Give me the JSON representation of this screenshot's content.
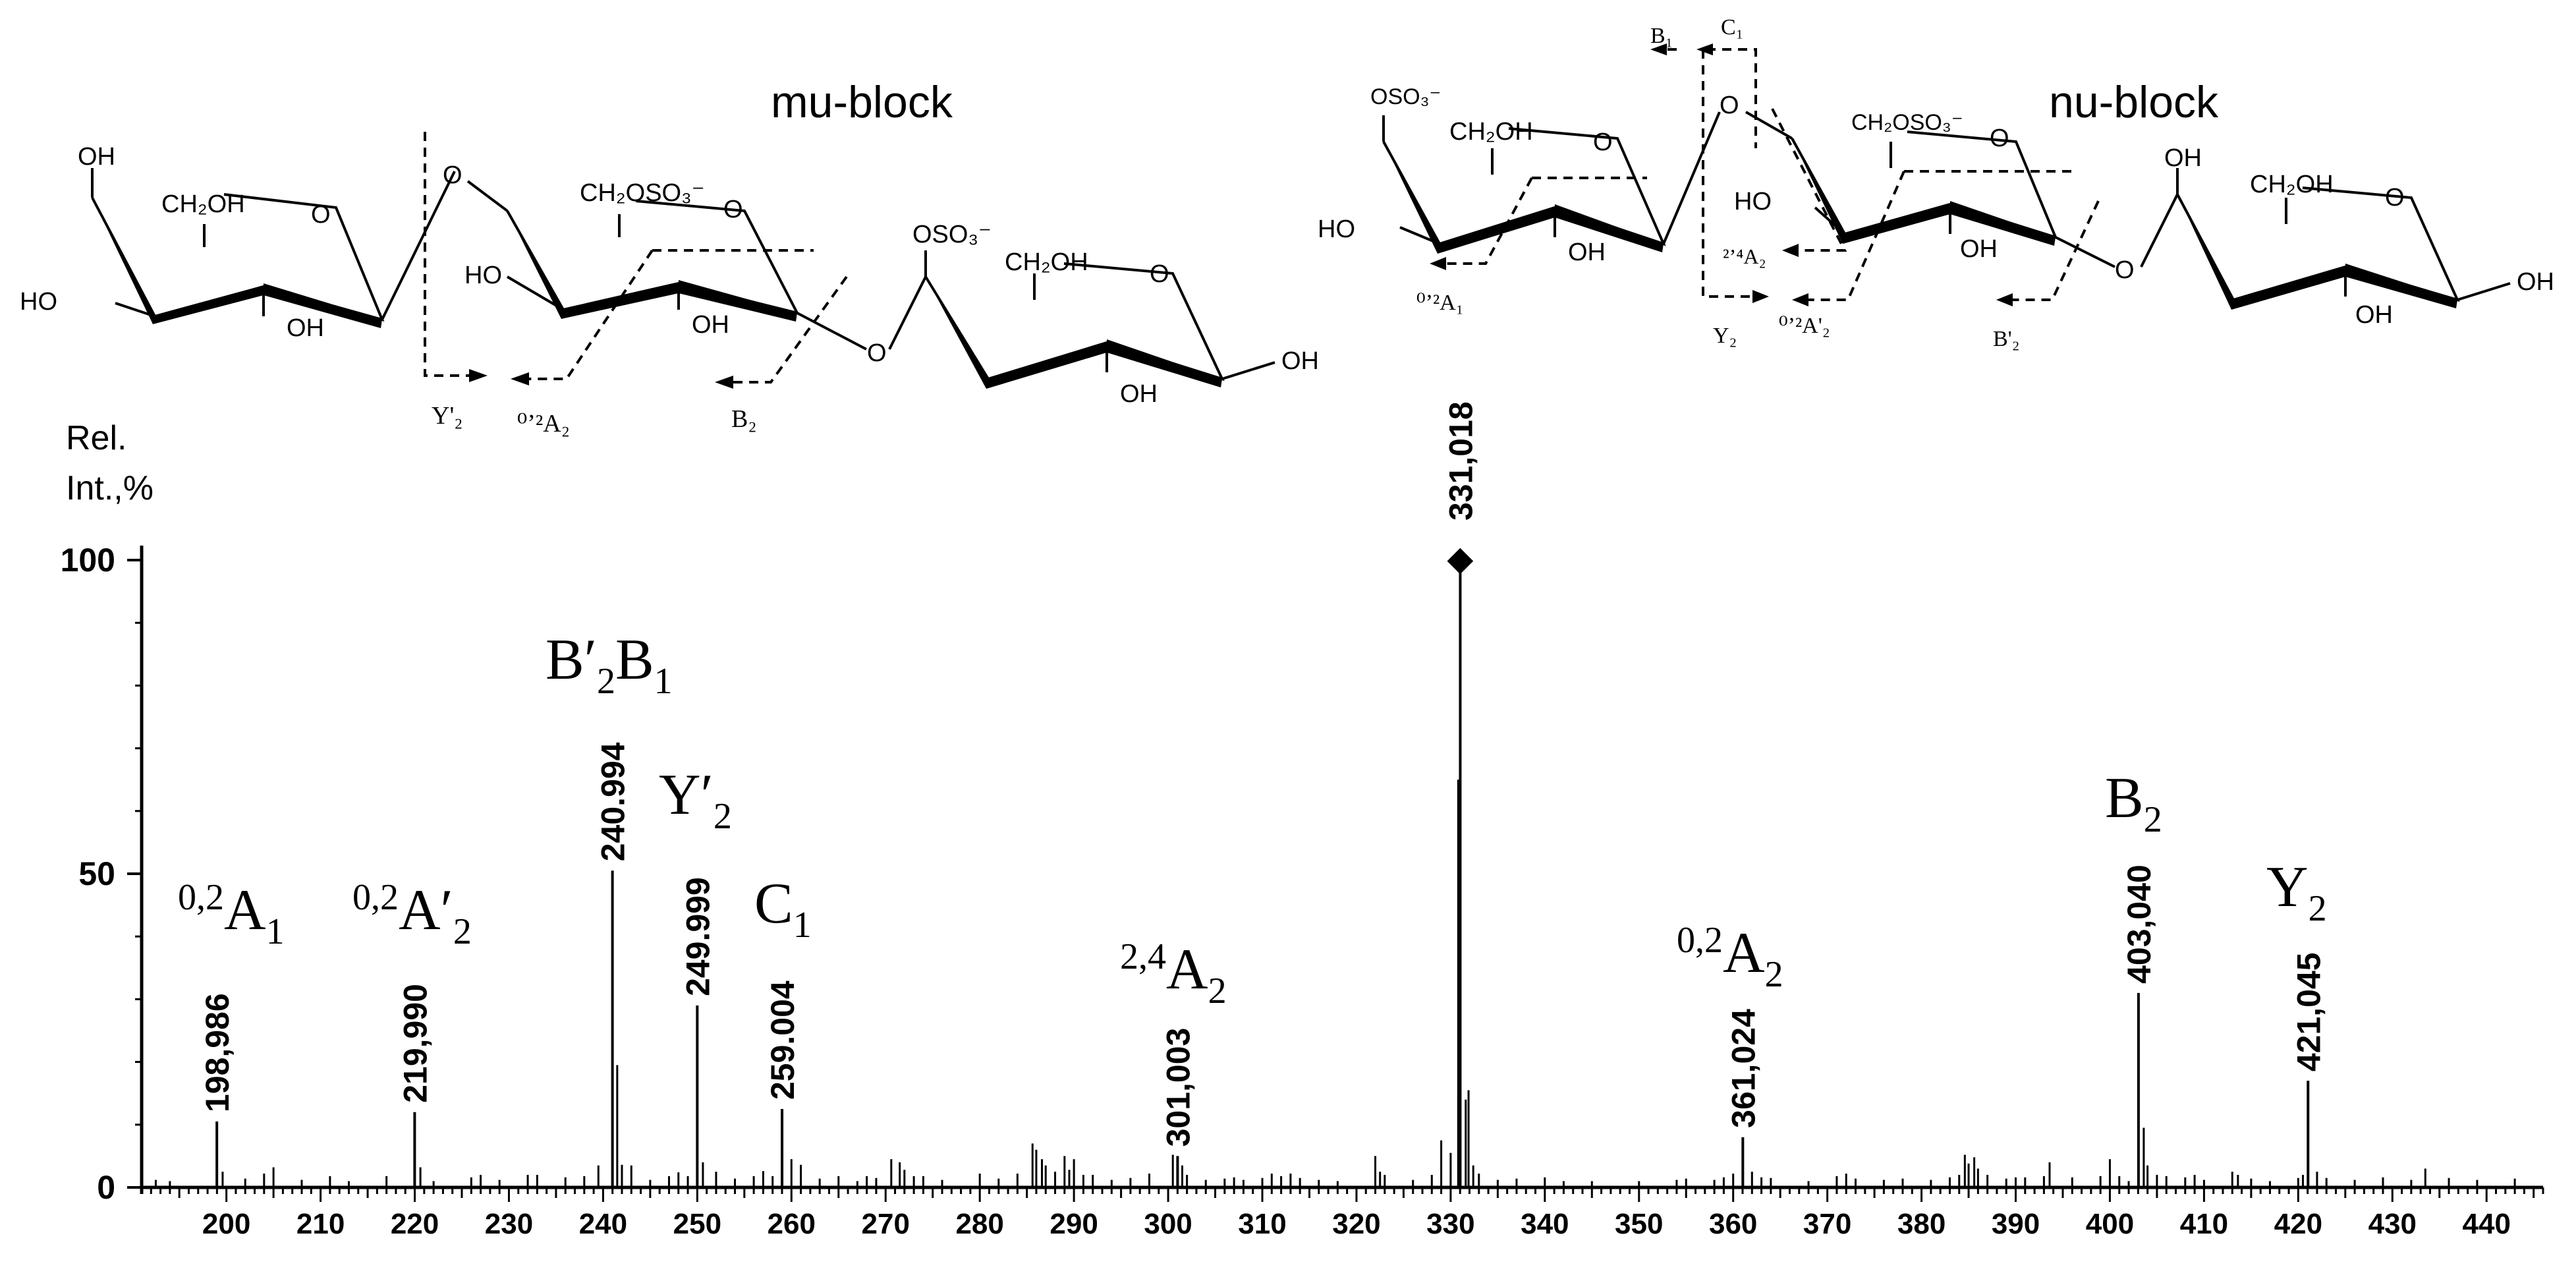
{
  "chart_data": {
    "type": "bar",
    "subtype": "mass-spectrum",
    "ylabel_line1": "Rel.",
    "ylabel_line2": "Int.,%",
    "xlim": [
      191,
      446
    ],
    "ylim": [
      0,
      100
    ],
    "x_ticks": [
      200,
      210,
      220,
      230,
      240,
      250,
      260,
      270,
      280,
      290,
      300,
      310,
      320,
      330,
      340,
      350,
      360,
      370,
      380,
      390,
      400,
      410,
      420,
      430,
      440
    ],
    "y_ticks": [
      0,
      50,
      100
    ],
    "labeled_peaks": [
      {
        "x": 198.986,
        "y": 10.5,
        "mz_label": "198,986",
        "ion": "A",
        "ion_sup": "0,2",
        "ion_sub": "1",
        "prime": ""
      },
      {
        "x": 219.99,
        "y": 12.0,
        "mz_label": "219,990",
        "ion": "A",
        "ion_sup": "0,2",
        "ion_sub": "2",
        "prime": "′"
      },
      {
        "x": 240.994,
        "y": 50.5,
        "mz_label": "240.994",
        "ion": "B′2B1",
        "ion_sup": "",
        "ion_sub": "",
        "prime": ""
      },
      {
        "x": 249.999,
        "y": 29.0,
        "mz_label": "249.999",
        "ion": "Y",
        "ion_sup": "",
        "ion_sub": "2",
        "prime": "′"
      },
      {
        "x": 259.004,
        "y": 12.5,
        "mz_label": "259.004",
        "ion": "C",
        "ion_sup": "",
        "ion_sub": "1",
        "prime": ""
      },
      {
        "x": 301.003,
        "y": 5.0,
        "mz_label": "301,003",
        "ion": "A",
        "ion_sup": "2,4",
        "ion_sub": "2",
        "prime": ""
      },
      {
        "x": 331.018,
        "y": 100.0,
        "mz_label": "331,018",
        "ion": "",
        "ion_sup": "",
        "ion_sub": "",
        "prime": "",
        "marker": "◆"
      },
      {
        "x": 361.024,
        "y": 8.0,
        "mz_label": "361,024",
        "ion": "A",
        "ion_sup": "0,2",
        "ion_sub": "2",
        "prime": ""
      },
      {
        "x": 403.04,
        "y": 31.0,
        "mz_label": "403,040",
        "ion": "B",
        "ion_sup": "",
        "ion_sub": "2",
        "prime": ""
      },
      {
        "x": 421.045,
        "y": 17.0,
        "mz_label": "421,045",
        "ion": "Y",
        "ion_sup": "",
        "ion_sub": "2",
        "prime": ""
      }
    ],
    "minor_peaks": [
      [
        192.5,
        1.2
      ],
      [
        194,
        1.0
      ],
      [
        199.6,
        2.5
      ],
      [
        202,
        1.4
      ],
      [
        204,
        2.2
      ],
      [
        205,
        3.2
      ],
      [
        208,
        1.2
      ],
      [
        211,
        1.8
      ],
      [
        213,
        1.0
      ],
      [
        217,
        1.8
      ],
      [
        220.6,
        3.2
      ],
      [
        222,
        1.0
      ],
      [
        226,
        1.6
      ],
      [
        227,
        2.0
      ],
      [
        229,
        1.2
      ],
      [
        232,
        2.0
      ],
      [
        233,
        2.0
      ],
      [
        236,
        1.6
      ],
      [
        238,
        1.8
      ],
      [
        239.5,
        3.5
      ],
      [
        241.5,
        19.5
      ],
      [
        242,
        3.6
      ],
      [
        243,
        3.5
      ],
      [
        245,
        1.2
      ],
      [
        247,
        1.8
      ],
      [
        248,
        2.4
      ],
      [
        249,
        1.8
      ],
      [
        250.6,
        4.0
      ],
      [
        252,
        2.5
      ],
      [
        254,
        1.4
      ],
      [
        256,
        1.8
      ],
      [
        257,
        2.6
      ],
      [
        258,
        1.8
      ],
      [
        260,
        4.5
      ],
      [
        261,
        3.6
      ],
      [
        263,
        1.4
      ],
      [
        265,
        1.8
      ],
      [
        267,
        1.0
      ],
      [
        268,
        1.8
      ],
      [
        269,
        1.5
      ],
      [
        270.6,
        4.5
      ],
      [
        271.5,
        4.0
      ],
      [
        272,
        2.8
      ],
      [
        273,
        1.8
      ],
      [
        274,
        1.8
      ],
      [
        276,
        1.2
      ],
      [
        280,
        2.2
      ],
      [
        282,
        1.4
      ],
      [
        284,
        2.2
      ],
      [
        285.6,
        7.0
      ],
      [
        286,
        6.0
      ],
      [
        286.6,
        4.5
      ],
      [
        287,
        3.5
      ],
      [
        288,
        2.5
      ],
      [
        289,
        5.0
      ],
      [
        289.5,
        2.8
      ],
      [
        290,
        4.5
      ],
      [
        291,
        2.0
      ],
      [
        292,
        2.0
      ],
      [
        294,
        1.2
      ],
      [
        296,
        1.5
      ],
      [
        298,
        2.2
      ],
      [
        300.5,
        5.2
      ],
      [
        301.5,
        3.5
      ],
      [
        302,
        2.0
      ],
      [
        304,
        1.2
      ],
      [
        306,
        1.4
      ],
      [
        307,
        1.6
      ],
      [
        308,
        1.2
      ],
      [
        310,
        1.5
      ],
      [
        311,
        2.2
      ],
      [
        312,
        1.8
      ],
      [
        313,
        2.2
      ],
      [
        314,
        1.5
      ],
      [
        316,
        1.2
      ],
      [
        318,
        1.0
      ],
      [
        322,
        5.0
      ],
      [
        322.5,
        2.5
      ],
      [
        323,
        2.0
      ],
      [
        326,
        1.2
      ],
      [
        328,
        2.0
      ],
      [
        329,
        7.5
      ],
      [
        330,
        5.5
      ],
      [
        330.8,
        65
      ],
      [
        331.6,
        14
      ],
      [
        331.9,
        15.5
      ],
      [
        332.4,
        3.5
      ],
      [
        333,
        2.2
      ],
      [
        335,
        1.2
      ],
      [
        337,
        1.4
      ],
      [
        340,
        1.6
      ],
      [
        342,
        1.0
      ],
      [
        345,
        1.0
      ],
      [
        350,
        1.0
      ],
      [
        354,
        1.2
      ],
      [
        355,
        1.4
      ],
      [
        358,
        1.2
      ],
      [
        359,
        1.6
      ],
      [
        360,
        2.2
      ],
      [
        362,
        2.5
      ],
      [
        363,
        1.6
      ],
      [
        364,
        1.5
      ],
      [
        368,
        1.0
      ],
      [
        371,
        1.8
      ],
      [
        372,
        2.2
      ],
      [
        373,
        1.4
      ],
      [
        376,
        1.2
      ],
      [
        378,
        1.4
      ],
      [
        381,
        1.2
      ],
      [
        383,
        1.6
      ],
      [
        384,
        2.0
      ],
      [
        384.6,
        5.2
      ],
      [
        385,
        3.8
      ],
      [
        385.6,
        4.8
      ],
      [
        386,
        3.0
      ],
      [
        387,
        2.0
      ],
      [
        389,
        1.4
      ],
      [
        390,
        1.6
      ],
      [
        391,
        1.6
      ],
      [
        393,
        1.8
      ],
      [
        393.6,
        4.0
      ],
      [
        396,
        1.6
      ],
      [
        399,
        1.8
      ],
      [
        400,
        4.5
      ],
      [
        401,
        1.8
      ],
      [
        402,
        1.0
      ],
      [
        403.6,
        9.5
      ],
      [
        404,
        3.5
      ],
      [
        405,
        2.0
      ],
      [
        406,
        1.8
      ],
      [
        408,
        1.6
      ],
      [
        409,
        2.0
      ],
      [
        410,
        1.2
      ],
      [
        413,
        2.5
      ],
      [
        413.6,
        2.0
      ],
      [
        415,
        1.4
      ],
      [
        417,
        1.0
      ],
      [
        420,
        1.5
      ],
      [
        420.5,
        2.0
      ],
      [
        422,
        2.5
      ],
      [
        423,
        1.5
      ],
      [
        426,
        1.2
      ],
      [
        429,
        1.6
      ],
      [
        432,
        1.2
      ],
      [
        433.5,
        3.0
      ],
      [
        436,
        1.5
      ],
      [
        439,
        1.2
      ],
      [
        443,
        1.4
      ]
    ]
  },
  "structures": {
    "mu_block": {
      "title": "mu-block",
      "ring1": {
        "oh_top": "OH",
        "ch2oh": "CH₂OH",
        "o": "O",
        "ho_left": "HO",
        "oh_bottom": "OH"
      },
      "ring2": {
        "o_link": "O",
        "ch2oso3": "CH₂OSO₃⁻",
        "o": "O",
        "ho_left": "HO",
        "oh_bottom": "OH"
      },
      "ring3": {
        "o_link": "O",
        "oso3": "OSO₃⁻",
        "ch2oh": "CH₂OH",
        "o": "O",
        "oh_bottom": "OH",
        "oh_right": "OH"
      },
      "fragments": {
        "y2p": "Y'₂",
        "a02_2": "⁰ʼ²A₂",
        "b2": "B₂"
      }
    },
    "nu_block": {
      "title": "nu-block",
      "ring1": {
        "oso3": "OSO₃⁻",
        "ch2oh": "CH₂OH",
        "o": "O",
        "ho_left": "HO",
        "oh_bottom": "OH"
      },
      "ring2": {
        "o_link": "O",
        "ch2oso3": "CH₂OSO₃⁻",
        "o": "O",
        "ho_left": "HO",
        "oh_bottom": "OH"
      },
      "ring3": {
        "o_link": "O",
        "oh_top": "OH",
        "ch2oh": "CH₂OH",
        "o": "O",
        "oh_bottom": "OH",
        "oh_right": "OH"
      },
      "fragments": {
        "b1": "B₁",
        "c1": "C₁",
        "a02_1": "⁰ʼ²A₁",
        "a24_2": "²ʼ⁴A₂",
        "y2": "Y₂",
        "a02_2p": "⁰ʼ²A'₂",
        "b2p": "B'₂"
      }
    }
  }
}
